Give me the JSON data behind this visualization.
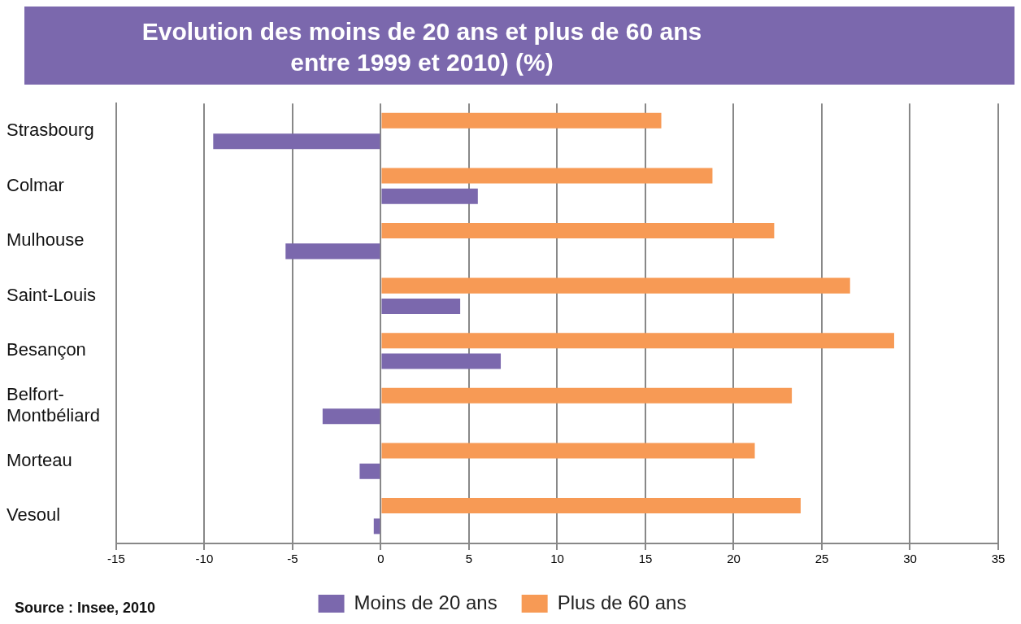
{
  "chart_data": {
    "type": "bar",
    "orientation": "horizontal",
    "title": "Evolution des moins de 20 ans et plus de 60 ans\nentre 1999 et 2010) (%)",
    "categories": [
      "Strasbourg",
      "Colmar",
      "Mulhouse",
      "Saint-Louis",
      "Besançon",
      "Belfort-Montbéliard",
      "Morteau",
      "Vesoul"
    ],
    "series": [
      {
        "name": "Moins de 20 ans",
        "color": "#7b68ad",
        "values": [
          -9.5,
          5.5,
          -5.4,
          4.5,
          6.8,
          -3.3,
          -1.2,
          -0.4
        ]
      },
      {
        "name": "Plus de 60 ans",
        "color": "#f79a55",
        "values": [
          15.9,
          18.8,
          22.3,
          26.6,
          29.1,
          23.3,
          21.2,
          23.8
        ]
      }
    ],
    "xlim": [
      -15,
      35
    ],
    "xticks": [
      -15,
      -10,
      -5,
      0,
      5,
      10,
      15,
      20,
      25,
      30,
      35
    ],
    "grid": "x",
    "legend": "bottom",
    "annotations": [
      "Source : Insee, 2010"
    ]
  }
}
